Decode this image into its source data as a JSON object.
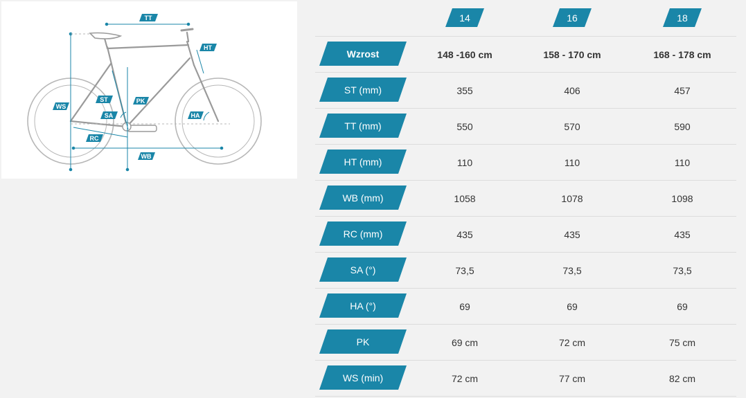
{
  "colors": {
    "accent": "#1a86a8",
    "text": "#333333",
    "background": "#f2f2f2",
    "divider": "#dcdcdc"
  },
  "diagram": {
    "labels": {
      "tt": "TT",
      "ht": "HT",
      "st": "ST",
      "pk": "PK",
      "sa": "SA",
      "ha": "HA",
      "ws": "WS",
      "rc": "RC",
      "wb": "WB"
    }
  },
  "table": {
    "sizes": [
      "14",
      "16",
      "18"
    ],
    "rows": [
      {
        "label": "Wzrost",
        "values": [
          "148 -160 cm",
          "158 - 170 cm",
          "168 - 178 cm"
        ],
        "bold": true
      },
      {
        "label": "ST (mm)",
        "values": [
          "355",
          "406",
          "457"
        ]
      },
      {
        "label": "TT (mm)",
        "values": [
          "550",
          "570",
          "590"
        ]
      },
      {
        "label": "HT (mm)",
        "values": [
          "110",
          "110",
          "110"
        ]
      },
      {
        "label": "WB (mm)",
        "values": [
          "1058",
          "1078",
          "1098"
        ]
      },
      {
        "label": "RC (mm)",
        "values": [
          "435",
          "435",
          "435"
        ]
      },
      {
        "label": "SA (°)",
        "values": [
          "73,5",
          "73,5",
          "73,5"
        ]
      },
      {
        "label": "HA (°)",
        "values": [
          "69",
          "69",
          "69"
        ]
      },
      {
        "label": "PK",
        "values": [
          "69 cm",
          "72 cm",
          "75 cm"
        ]
      },
      {
        "label": "WS (min)",
        "values": [
          "72 cm",
          "77 cm",
          "82 cm"
        ]
      }
    ]
  }
}
